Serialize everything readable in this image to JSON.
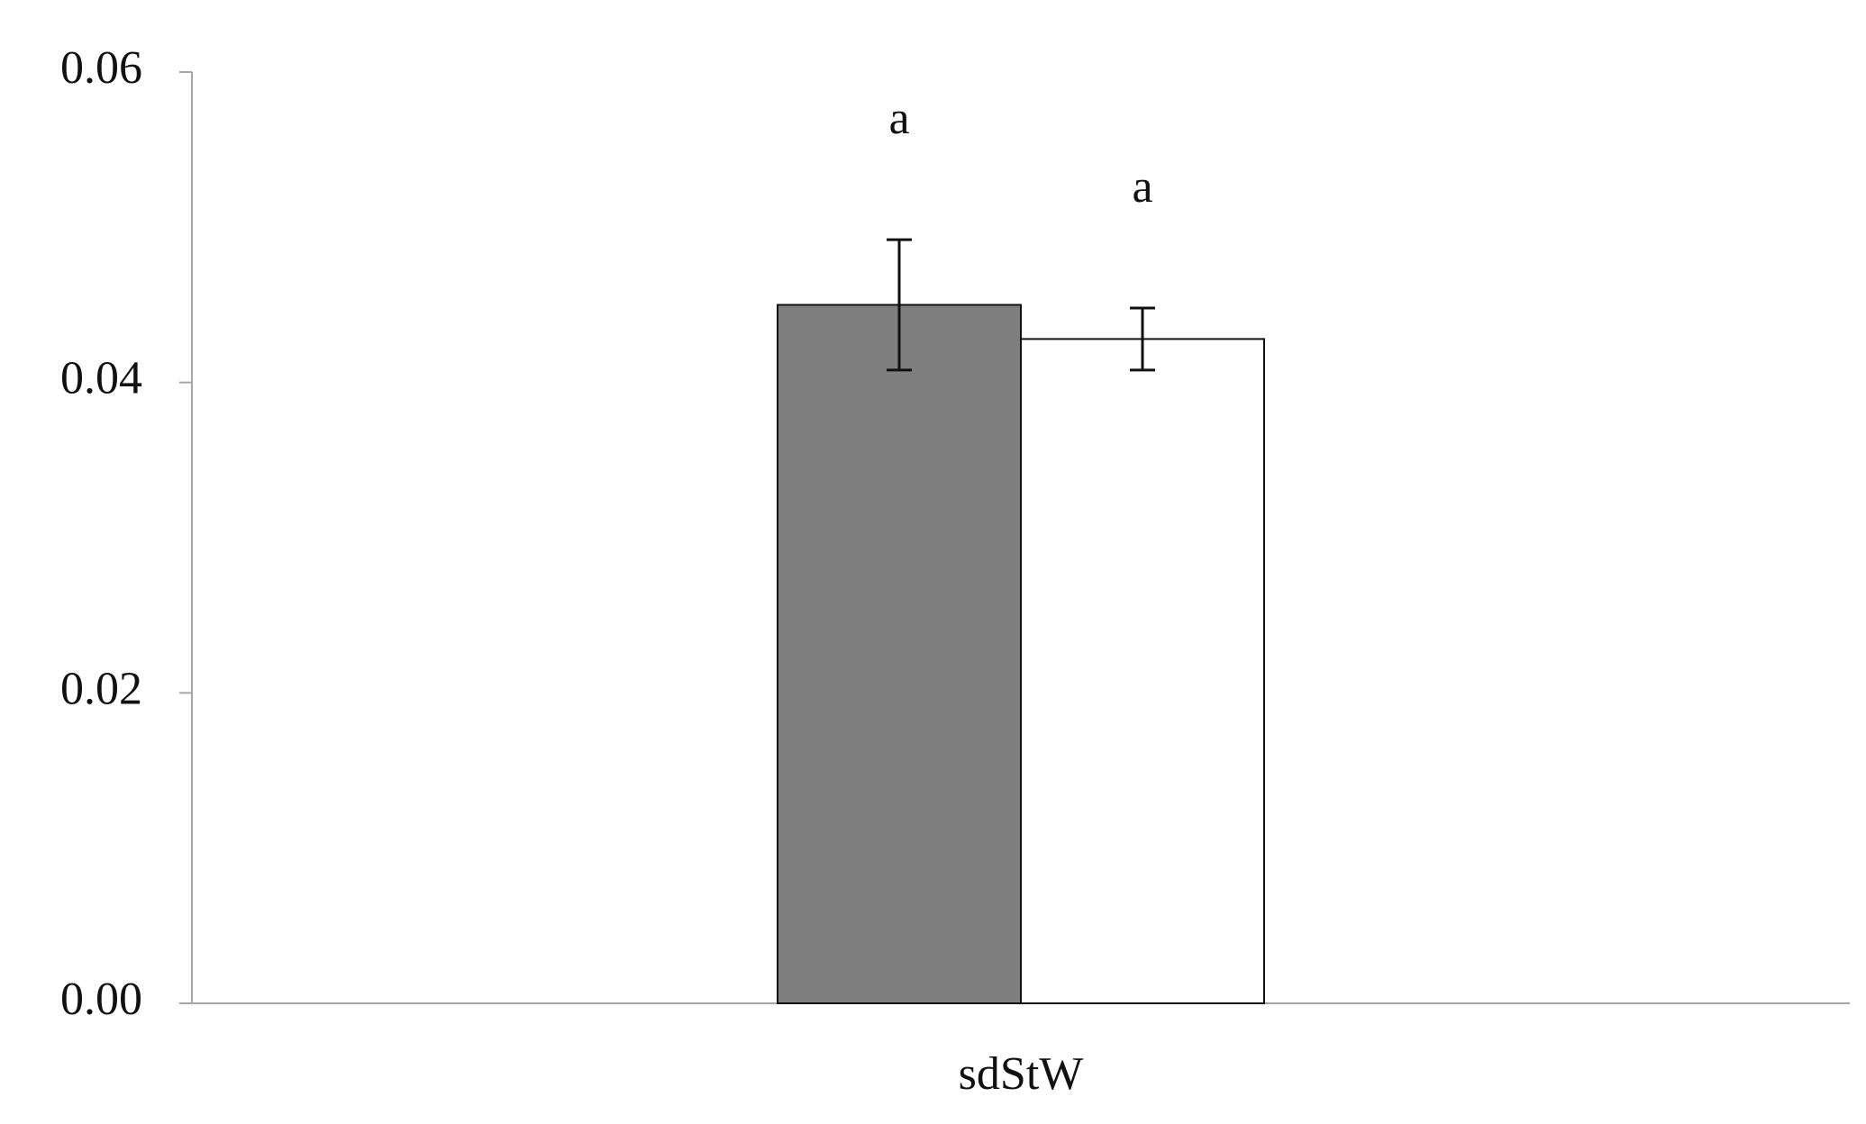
{
  "chart_data": {
    "type": "bar",
    "categories": [
      "sdStW"
    ],
    "series": [
      {
        "color": "#7f7f7f",
        "values": [
          0.045
        ],
        "errors": [
          0.0042
        ],
        "annotations": [
          "a"
        ]
      },
      {
        "color": "#ffffff",
        "values": [
          0.0428
        ],
        "errors": [
          0.002
        ],
        "annotations": [
          "a"
        ]
      }
    ],
    "ylim": [
      0,
      0.06
    ],
    "yticks": [
      {
        "value": 0,
        "label": "0.00"
      },
      0.02,
      0.04,
      0.06
    ],
    "grid": false
  }
}
